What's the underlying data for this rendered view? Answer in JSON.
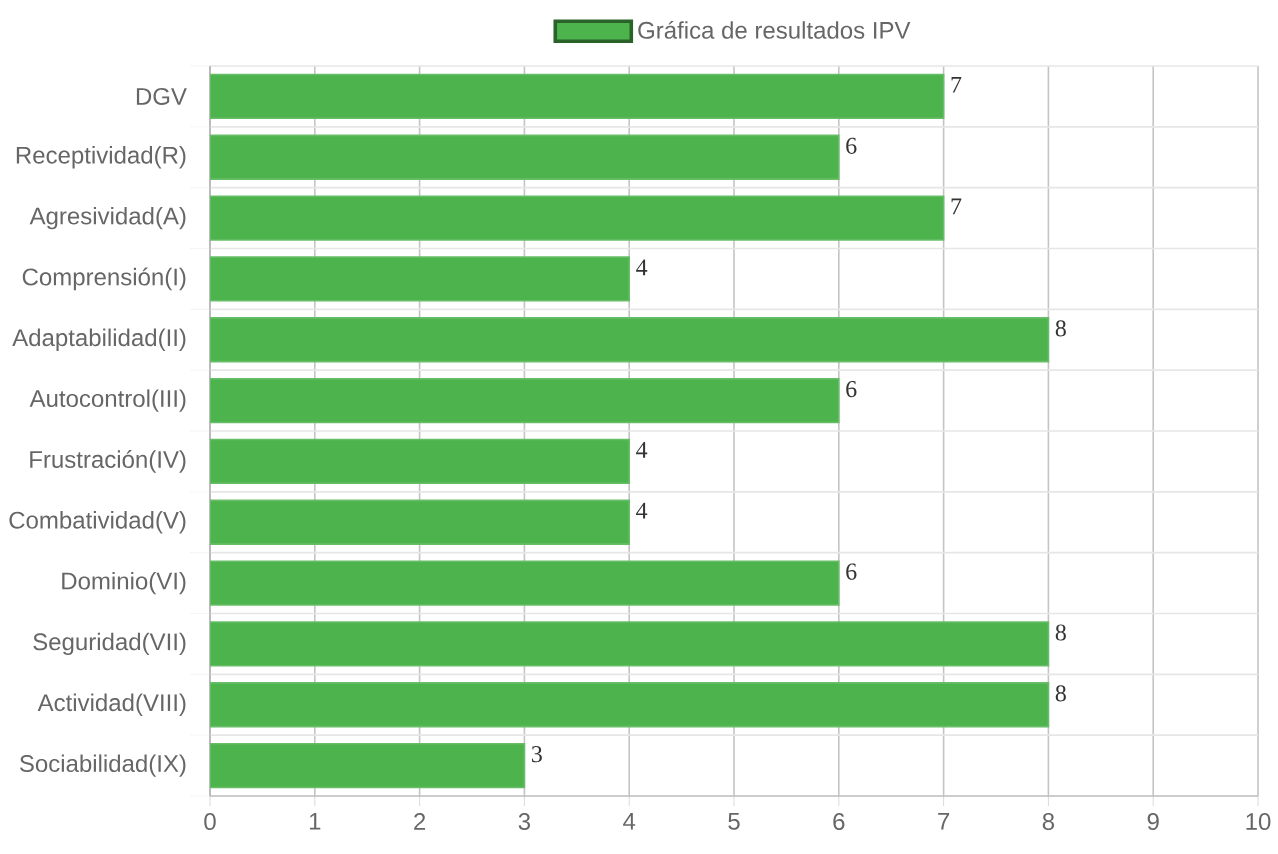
{
  "chart_data": {
    "type": "bar",
    "orientation": "horizontal",
    "categories": [
      "DGV",
      "Receptividad(R)",
      "Agresividad(A)",
      "Comprensión(I)",
      "Adaptabilidad(II)",
      "Autocontrol(III)",
      "Frustración(IV)",
      "Combatividad(V)",
      "Dominio(VI)",
      "Seguridad(VII)",
      "Actividad(VIII)",
      "Sociabilidad(IX)"
    ],
    "series": [
      {
        "name": "Gráfica de resultados IPV",
        "color": "#4db34d",
        "values": [
          7,
          6,
          7,
          4,
          8,
          6,
          4,
          4,
          6,
          8,
          8,
          3
        ]
      }
    ],
    "xlim": [
      0,
      10
    ],
    "xticks": [
      0,
      1,
      2,
      3,
      4,
      5,
      6,
      7,
      8,
      9,
      10
    ],
    "grid": true,
    "legend": "top",
    "data_labels": true
  }
}
